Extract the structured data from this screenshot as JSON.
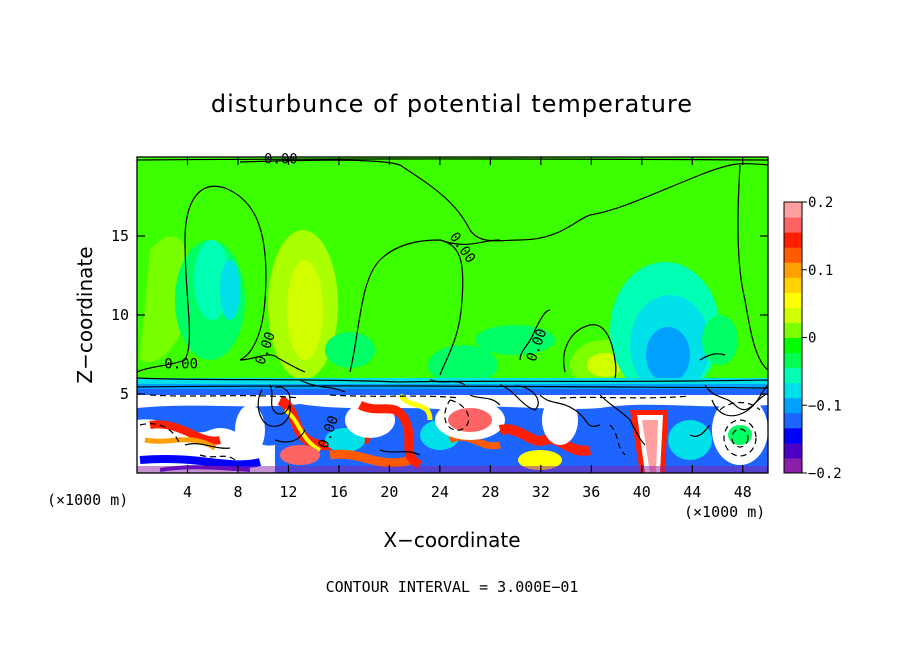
{
  "chart_data": {
    "type": "heatmap",
    "title": "disturbunce of potential temperature",
    "xlabel": "X−coordinate",
    "ylabel": "Z−coordinate",
    "x_unit_left": "(×1000 m)",
    "x_unit_right": "(×1000 m)",
    "footer": "CONTOUR INTERVAL = 3.000E−01",
    "xlim": [
      0,
      50
    ],
    "ylim": [
      0,
      20
    ],
    "x_ticks": [
      4,
      8,
      12,
      16,
      20,
      24,
      28,
      32,
      36,
      40,
      44,
      48
    ],
    "y_ticks": [
      5,
      10,
      15
    ],
    "colorbar": {
      "range": [
        -0.2,
        0.2
      ],
      "tick_labels": [
        {
          "value": 0.2,
          "label": "0.2"
        },
        {
          "value": 0.1,
          "label": "0.1"
        },
        {
          "value": 0,
          "label": "0"
        },
        {
          "value": -0.1,
          "label": "−0.1"
        },
        {
          "value": -0.2,
          "label": "−0.2"
        }
      ],
      "colors": [
        "#8b1fa8",
        "#4b00c8",
        "#0000ff",
        "#1e64ff",
        "#00a0ff",
        "#00e0e8",
        "#00ffb4",
        "#00ff50",
        "#00ff00",
        "#7cff00",
        "#d2ff00",
        "#ffff00",
        "#ffd200",
        "#ffa000",
        "#ff5a00",
        "#ff1e00",
        "#ff6464",
        "#ffa0a0"
      ]
    },
    "contour_labels": [
      {
        "text": "0.00",
        "x": 11.4,
        "z": 19.6,
        "rotate": 0
      },
      {
        "text": "0.00",
        "x": 3.5,
        "z": 6.6,
        "rotate": 0
      },
      {
        "text": "0.00",
        "x": 10.5,
        "z": 7.8,
        "rotate": -70
      },
      {
        "text": "0.00",
        "x": 25.5,
        "z": 14.1,
        "rotate": 55
      },
      {
        "text": "0.00",
        "x": 32.0,
        "z": 8.0,
        "rotate": -70
      },
      {
        "text": "0.00",
        "x": 15.5,
        "z": 2.5,
        "rotate": -70
      }
    ]
  }
}
